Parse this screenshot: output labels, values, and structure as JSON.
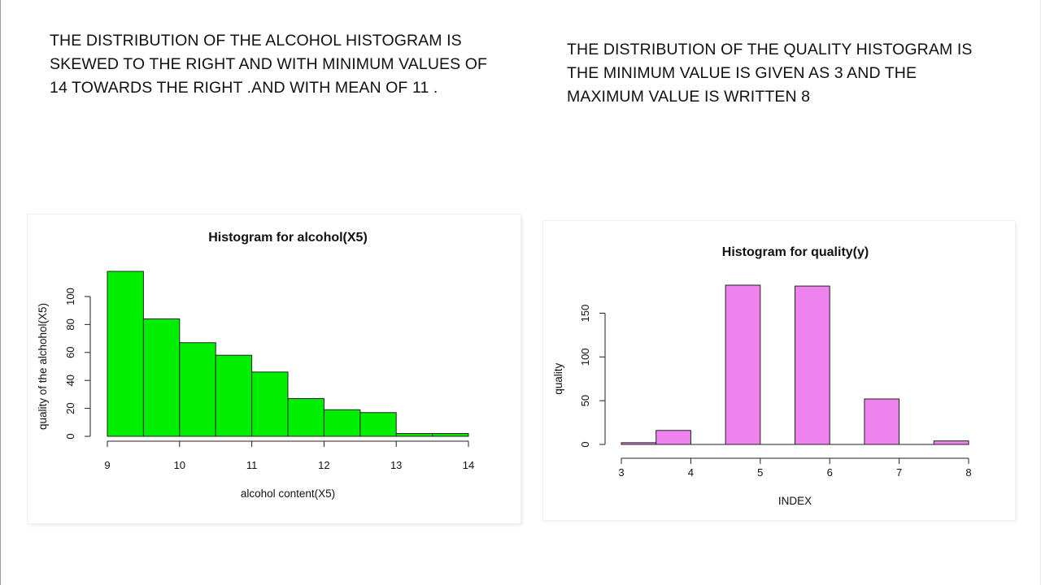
{
  "captions": {
    "left": "THE  DISTRIBUTION OF THE ALCOHOL HISTOGRAM IS\nSKEWED TO THE RIGHT  AND WITH MINIMUM VALUES OF\n14 TOWARDS THE RIGHT .AND WITH MEAN OF 11 .",
    "right": "THE  DISTRIBUTION OF THE QUALITY HISTOGRAM IS\nTHE MINIMUM VALUE IS GIVEN AS 3 AND THE\nMAXIMUM VALUE IS WRITTEN 8"
  },
  "chart_data": [
    {
      "type": "bar",
      "title": "Histogram for alcohol(X5)",
      "xlabel": "alcohol content(X5)",
      "ylabel": "quality of the alchohol(X5)",
      "bin_edges": [
        9,
        9.5,
        10,
        10.5,
        11,
        11.5,
        12,
        12.5,
        13,
        13.5,
        14
      ],
      "values": [
        118,
        84,
        67,
        58,
        46,
        27,
        19,
        17,
        2,
        2
      ],
      "xticks": [
        9,
        10,
        11,
        12,
        13,
        14
      ],
      "yticks": [
        0,
        20,
        40,
        60,
        80,
        100
      ],
      "xlim": [
        9,
        14
      ],
      "ylim": [
        0,
        118
      ],
      "bar_color": "#00ee00",
      "grid": false,
      "legend": "none"
    },
    {
      "type": "bar",
      "title": "Histogram for quality(y)",
      "xlabel": "INDEX",
      "ylabel": "quality",
      "bin_edges": [
        3,
        3.5,
        4,
        4.5,
        5,
        5.5,
        6,
        6.5,
        7,
        7.5,
        8
      ],
      "values": [
        2,
        16,
        0,
        182,
        0,
        181,
        0,
        52,
        0,
        4
      ],
      "xticks": [
        3,
        4,
        5,
        6,
        7,
        8
      ],
      "yticks": [
        0,
        50,
        100,
        150
      ],
      "xlim": [
        3,
        8
      ],
      "ylim": [
        0,
        182
      ],
      "bar_color": "#ee82ee",
      "grid": false,
      "legend": "none"
    }
  ]
}
